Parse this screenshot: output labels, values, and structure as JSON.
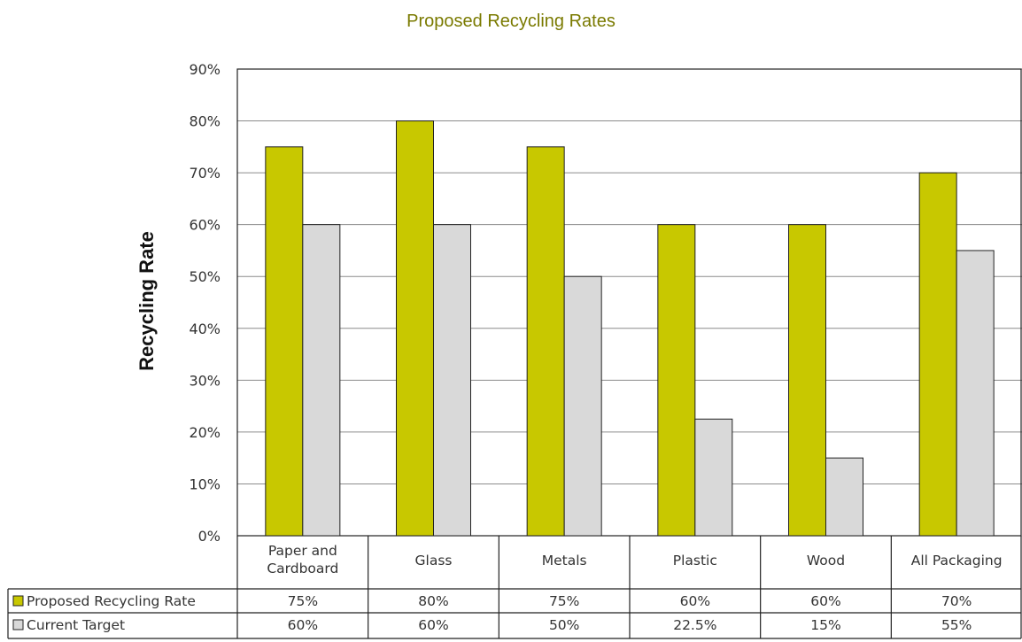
{
  "chart_data": {
    "type": "bar",
    "title": "Proposed Recycling Rates",
    "xlabel": "",
    "ylabel": "Recycling Rate",
    "ylim": [
      0,
      90
    ],
    "yticks": [
      "0%",
      "10%",
      "20%",
      "30%",
      "40%",
      "50%",
      "60%",
      "70%",
      "80%",
      "90%"
    ],
    "grid": true,
    "legend": "data-table-left",
    "categories": [
      [
        "Paper and",
        "Cardboard"
      ],
      [
        "Glass"
      ],
      [
        "Metals"
      ],
      [
        "Plastic"
      ],
      [
        "Wood"
      ],
      [
        "All Packaging"
      ]
    ],
    "series": [
      {
        "name": "Proposed Recycling Rate",
        "color": "#c8c800",
        "values": [
          75,
          80,
          75,
          60,
          60,
          70
        ],
        "labels": [
          "75%",
          "80%",
          "75%",
          "60%",
          "60%",
          "70%"
        ]
      },
      {
        "name": "Current Target",
        "color": "#d9d9d9",
        "values": [
          60,
          60,
          50,
          22.5,
          15,
          55
        ],
        "labels": [
          "60%",
          "60%",
          "50%",
          "22.5%",
          "15%",
          "55%"
        ]
      }
    ],
    "title_color": "#7a7a00"
  }
}
